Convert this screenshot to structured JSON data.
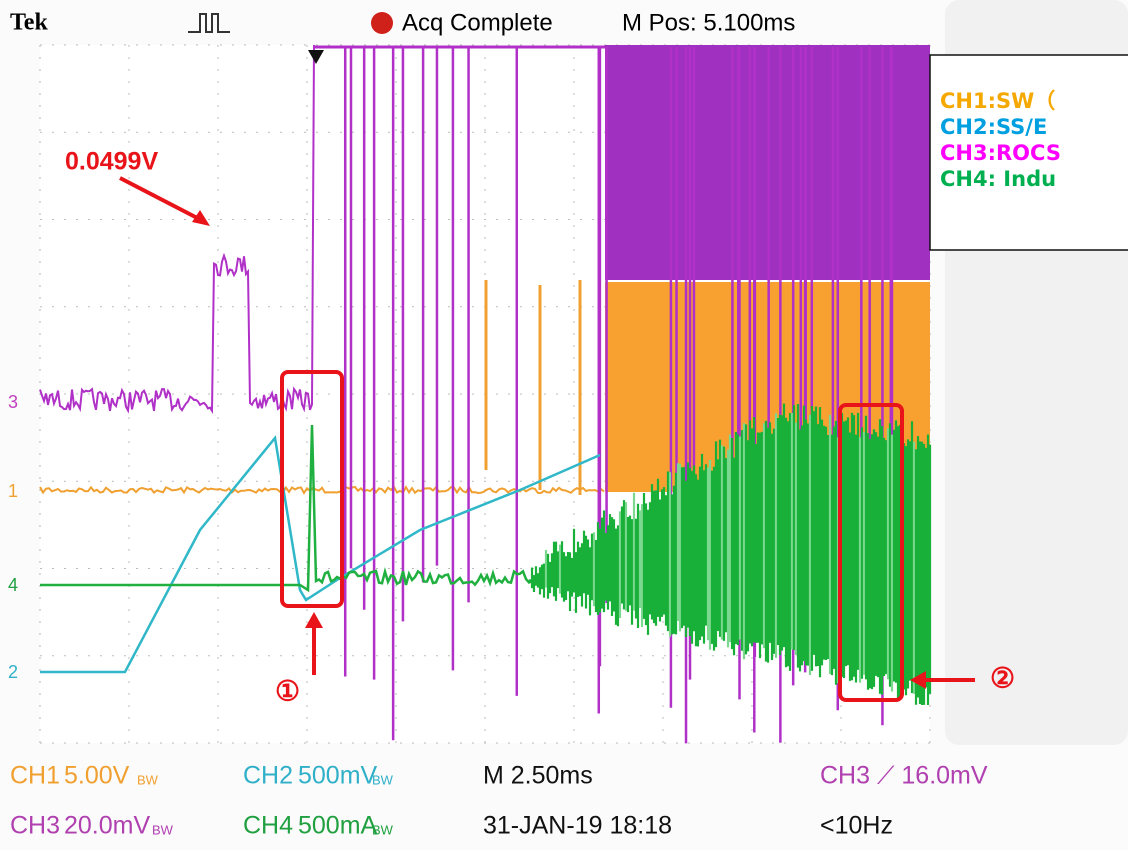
{
  "header": {
    "brand": "Tek",
    "status": "Acq Complete",
    "position": "M Pos: 5.100ms"
  },
  "legend": [
    "CH1:SW（",
    "CH2:SS/E",
    "CH3:ROCS",
    "CH4: Indu"
  ],
  "annotations": {
    "voltage": "0.0499V",
    "marker1": "①",
    "marker2": "②"
  },
  "channel_markers": [
    "3",
    "1",
    "4",
    "2"
  ],
  "footer": {
    "ch1": "CH1",
    "ch1_scale": "5.00V",
    "ch2": "CH2",
    "ch2_scale": "500mV",
    "timebase": "M 2.50ms",
    "trigger": "CH3 ⟋ 16.0mV",
    "ch3": "CH3",
    "ch3_scale": "20.0mV",
    "ch4": "CH4",
    "ch4_scale": "500mA",
    "date": "31-JAN-19 18:18",
    "freq": "<10Hz",
    "bw": "BW"
  }
}
